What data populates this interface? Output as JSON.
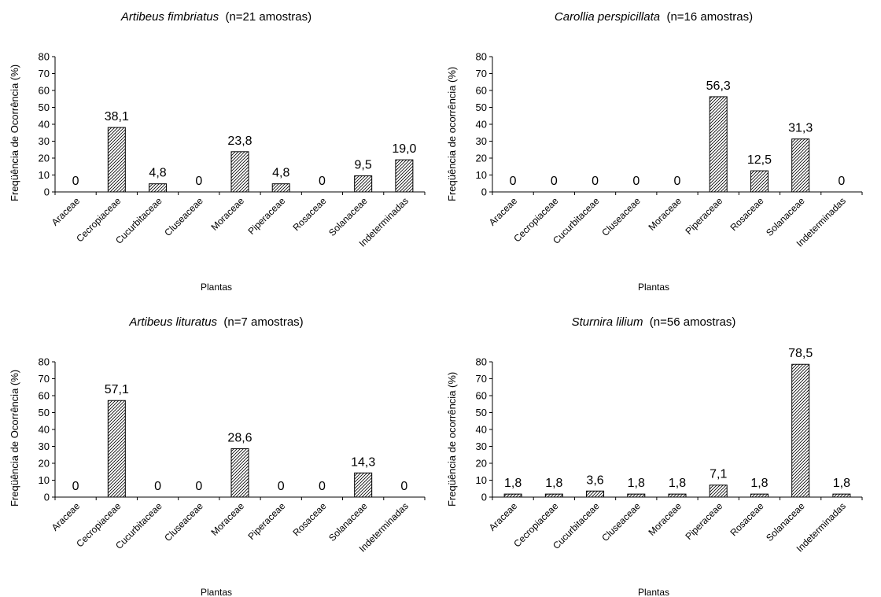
{
  "chart_data": [
    {
      "type": "bar",
      "title": {
        "species": "Artibeus fimbriatus",
        "note": "(n=21 amostras)"
      },
      "xlabel": "Plantas",
      "ylabel": "Freqüência de Ocorrência (%)",
      "ylim": [
        0,
        80
      ],
      "yticks": [
        "0",
        "10",
        "20",
        "30",
        "40",
        "50",
        "60",
        "70",
        "80"
      ],
      "categories": [
        "Araceae",
        "Cecropiaceae",
        "Cucurbitaceae",
        "Cluseaceae",
        "Moraceae",
        "Piperaceae",
        "Rosaceae",
        "Solanaceae",
        "Indeterminadas"
      ],
      "values": [
        0,
        38.1,
        4.8,
        0,
        23.8,
        4.8,
        0,
        9.5,
        19.0
      ],
      "data_labels": [
        "0",
        "38,1",
        "4,8",
        "0",
        "23,8",
        "4,8",
        "0",
        "9,5",
        "19,0"
      ],
      "grid": false,
      "legend": "none",
      "bar_pattern": "diagonal hatch"
    },
    {
      "type": "bar",
      "title": {
        "species": "Carollia perspicillata",
        "note": "(n=16 amostras)"
      },
      "xlabel": "Plantas",
      "ylabel": "Freqüência de ocorrência (%)",
      "ylim": [
        0,
        80
      ],
      "yticks": [
        "0",
        "10",
        "20",
        "30",
        "40",
        "50",
        "60",
        "70",
        "80"
      ],
      "categories": [
        "Araceae",
        "Cecropiaceae",
        "Cucurbitaceae",
        "Cluseaceae",
        "Moraceae",
        "Piperaceae",
        "Rosaceae",
        "Solanaceae",
        "Indeterminadas"
      ],
      "values": [
        0,
        0,
        0,
        0,
        0,
        56.3,
        12.5,
        31.3,
        0
      ],
      "data_labels": [
        "0",
        "0",
        "0",
        "0",
        "0",
        "56,3",
        "12,5",
        "31,3",
        "0"
      ],
      "grid": false,
      "legend": "none",
      "bar_pattern": "diagonal hatch"
    },
    {
      "type": "bar",
      "title": {
        "species": "Artibeus lituratus",
        "note": "(n=7 amostras)"
      },
      "xlabel": "Plantas",
      "ylabel": "Freqüência de Ocorrência (%)",
      "ylim": [
        0,
        80
      ],
      "yticks": [
        "0",
        "10",
        "20",
        "30",
        "40",
        "50",
        "60",
        "70",
        "80"
      ],
      "categories": [
        "Araceae",
        "Cecropiaceae",
        "Cucurbitaceae",
        "Cluseaceae",
        "Moraceae",
        "Piperaceae",
        "Rosaceae",
        "Solanaceae",
        "Indeterminadas"
      ],
      "values": [
        0,
        57.1,
        0,
        0,
        28.6,
        0,
        0,
        14.3,
        0
      ],
      "data_labels": [
        "0",
        "57,1",
        "0",
        "0",
        "28,6",
        "0",
        "0",
        "14,3",
        "0"
      ],
      "grid": false,
      "legend": "none",
      "bar_pattern": "diagonal hatch"
    },
    {
      "type": "bar",
      "title": {
        "species": "Sturnira lilium",
        "note": "(n=56 amostras)"
      },
      "xlabel": "Plantas",
      "ylabel": "Freqüência de ocorrência (%)",
      "ylim": [
        0,
        80
      ],
      "yticks": [
        "0",
        "10",
        "20",
        "30",
        "40",
        "50",
        "60",
        "70",
        "80"
      ],
      "categories": [
        "Araceae",
        "Cecropiaceae",
        "Cucurbitaceae",
        "Cluseaceae",
        "Moraceae",
        "Piperaceae",
        "Rosaceae",
        "Solanaceae",
        "Indeterminadas"
      ],
      "values": [
        1.8,
        1.8,
        3.6,
        1.8,
        1.8,
        7.1,
        1.8,
        78.5,
        1.8
      ],
      "data_labels": [
        "1,8",
        "1,8",
        "3,6",
        "1,8",
        "1,8",
        "7,1",
        "1,8",
        "78,5",
        "1,8"
      ],
      "grid": false,
      "legend": "none",
      "bar_pattern": "diagonal hatch"
    }
  ]
}
